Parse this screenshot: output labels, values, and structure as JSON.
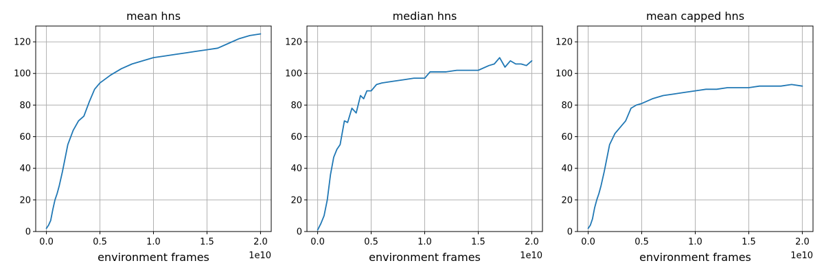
{
  "style": {
    "line_color": "#1f77b4",
    "grid_color": "#b0b0b0"
  },
  "chart_data": [
    {
      "type": "line",
      "title": "mean hns",
      "xlabel": "environment frames",
      "x_offset_label": "1e10",
      "xlim": [
        -0.1,
        2.1
      ],
      "ylim": [
        0,
        130
      ],
      "xticks": [
        0.0,
        0.5,
        1.0,
        1.5,
        2.0
      ],
      "xtick_labels": [
        "0.0",
        "0.5",
        "1.0",
        "1.5",
        "2.0"
      ],
      "yticks": [
        0,
        20,
        40,
        60,
        80,
        100,
        120
      ],
      "ytick_labels": [
        "0",
        "20",
        "40",
        "60",
        "80",
        "100",
        "120"
      ],
      "grid": true,
      "series": [
        {
          "x": [
            0.0,
            0.02,
            0.04,
            0.06,
            0.08,
            0.1,
            0.12,
            0.15,
            0.2,
            0.25,
            0.3,
            0.35,
            0.4,
            0.45,
            0.5,
            0.6,
            0.7,
            0.8,
            0.9,
            1.0,
            1.1,
            1.2,
            1.3,
            1.4,
            1.5,
            1.6,
            1.7,
            1.8,
            1.9,
            2.0
          ],
          "y": [
            2,
            4,
            7,
            14,
            20,
            24,
            29,
            38,
            55,
            64,
            70,
            73,
            82,
            90,
            94,
            99,
            103,
            106,
            108,
            110,
            111,
            112,
            113,
            114,
            115,
            116,
            119,
            122,
            124,
            125
          ]
        }
      ]
    },
    {
      "type": "line",
      "title": "median hns",
      "xlabel": "environment frames",
      "x_offset_label": "1e10",
      "xlim": [
        -0.1,
        2.1
      ],
      "ylim": [
        0,
        130
      ],
      "xticks": [
        0.0,
        0.5,
        1.0,
        1.5,
        2.0
      ],
      "xtick_labels": [
        "0.0",
        "0.5",
        "1.0",
        "1.5",
        "2.0"
      ],
      "yticks": [
        0,
        20,
        40,
        60,
        80,
        100,
        120
      ],
      "ytick_labels": [
        "0",
        "20",
        "40",
        "60",
        "80",
        "100",
        "120"
      ],
      "grid": true,
      "series": [
        {
          "x": [
            0.0,
            0.03,
            0.06,
            0.09,
            0.12,
            0.15,
            0.18,
            0.21,
            0.25,
            0.28,
            0.32,
            0.36,
            0.4,
            0.43,
            0.46,
            0.5,
            0.55,
            0.6,
            0.7,
            0.8,
            0.9,
            1.0,
            1.05,
            1.1,
            1.2,
            1.3,
            1.4,
            1.5,
            1.6,
            1.65,
            1.7,
            1.75,
            1.8,
            1.85,
            1.9,
            1.95,
            2.0
          ],
          "y": [
            1,
            5,
            10,
            20,
            36,
            47,
            52,
            55,
            70,
            69,
            78,
            75,
            86,
            84,
            89,
            89,
            93,
            94,
            95,
            96,
            97,
            97,
            101,
            101,
            101,
            102,
            102,
            102,
            105,
            106,
            110,
            104,
            108,
            106,
            106,
            105,
            108
          ]
        }
      ]
    },
    {
      "type": "line",
      "title": "mean capped hns",
      "xlabel": "environment frames",
      "x_offset_label": "1e10",
      "xlim": [
        -0.1,
        2.1
      ],
      "ylim": [
        0,
        130
      ],
      "xticks": [
        0.0,
        0.5,
        1.0,
        1.5,
        2.0
      ],
      "xtick_labels": [
        "0.0",
        "0.5",
        "1.0",
        "1.5",
        "2.0"
      ],
      "yticks": [
        0,
        20,
        40,
        60,
        80,
        100,
        120
      ],
      "ytick_labels": [
        "0",
        "20",
        "40",
        "60",
        "80",
        "100",
        "120"
      ],
      "grid": true,
      "series": [
        {
          "x": [
            0.0,
            0.02,
            0.04,
            0.06,
            0.08,
            0.1,
            0.12,
            0.15,
            0.2,
            0.25,
            0.3,
            0.35,
            0.4,
            0.45,
            0.5,
            0.6,
            0.7,
            0.8,
            0.9,
            1.0,
            1.1,
            1.2,
            1.3,
            1.4,
            1.5,
            1.6,
            1.7,
            1.8,
            1.9,
            2.0
          ],
          "y": [
            2,
            4,
            8,
            15,
            20,
            24,
            29,
            38,
            55,
            62,
            66,
            70,
            78,
            80,
            81,
            84,
            86,
            87,
            88,
            89,
            90,
            90,
            91,
            91,
            91,
            92,
            92,
            92,
            93,
            92
          ]
        }
      ]
    }
  ]
}
